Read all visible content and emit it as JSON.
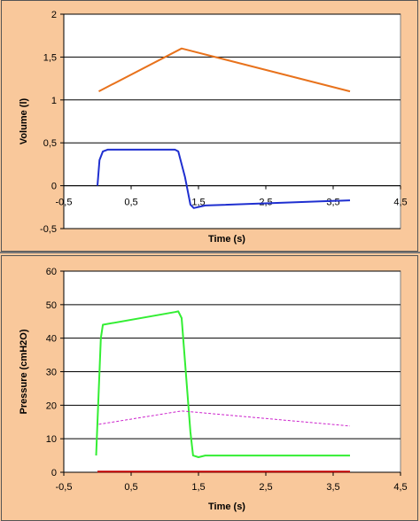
{
  "chart_data": [
    {
      "type": "line",
      "xlabel": "Time (s)",
      "ylabel": "Volume (l)",
      "xlim": [
        -0.5,
        4.5
      ],
      "ylim": [
        -0.5,
        2
      ],
      "xticks": [
        -0.5,
        0.5,
        1.5,
        2.5,
        3.5,
        4.5
      ],
      "xtick_labels": [
        "-0,5",
        "0,5",
        "1,5",
        "2,5",
        "3,5",
        "4,5"
      ],
      "yticks": [
        -0.5,
        0,
        0.5,
        1,
        1.5,
        2
      ],
      "ytick_labels": [
        "-0,5",
        "0",
        "0,5",
        "1",
        "1,5",
        "2"
      ],
      "grid": true,
      "series": [
        {
          "color": "#e8721c",
          "style": "solid",
          "points": [
            [
              0.02,
              1.1
            ],
            [
              1.25,
              1.6
            ],
            [
              3.75,
              1.1
            ]
          ]
        },
        {
          "color": "#1f2fd0",
          "style": "solid",
          "points": [
            [
              0.0,
              0.0
            ],
            [
              0.03,
              0.3
            ],
            [
              0.08,
              0.4
            ],
            [
              0.15,
              0.42
            ],
            [
              1.15,
              0.42
            ],
            [
              1.2,
              0.4
            ],
            [
              1.3,
              0.1
            ],
            [
              1.38,
              -0.22
            ],
            [
              1.43,
              -0.26
            ],
            [
              1.6,
              -0.23
            ],
            [
              3.75,
              -0.17
            ]
          ]
        }
      ]
    },
    {
      "type": "line",
      "xlabel": "Time (s)",
      "ylabel": "Pressure (cmH2O)",
      "xlim": [
        -0.5,
        4.5
      ],
      "ylim": [
        0,
        60
      ],
      "xticks": [
        -0.5,
        0.5,
        1.5,
        2.5,
        3.5,
        4.5
      ],
      "xtick_labels": [
        "-0,5",
        "0,5",
        "1,5",
        "2,5",
        "3,5",
        "4,5"
      ],
      "yticks": [
        0,
        10,
        20,
        30,
        40,
        50,
        60
      ],
      "ytick_labels": [
        "0",
        "10",
        "20",
        "30",
        "40",
        "50",
        "60"
      ],
      "grid": true,
      "series": [
        {
          "color": "#33ee33",
          "style": "solid",
          "points": [
            [
              -0.02,
              5
            ],
            [
              0.05,
              40
            ],
            [
              0.08,
              44
            ],
            [
              1.15,
              47.8
            ],
            [
              1.2,
              48
            ],
            [
              1.25,
              46
            ],
            [
              1.38,
              12
            ],
            [
              1.42,
              5
            ],
            [
              1.5,
              4.5
            ],
            [
              1.6,
              5
            ],
            [
              3.75,
              5
            ]
          ]
        },
        {
          "color": "#cc22cc",
          "style": "dashed",
          "points": [
            [
              0.02,
              14.3
            ],
            [
              1.25,
              18.3
            ],
            [
              3.75,
              13.8
            ]
          ]
        },
        {
          "color": "#c00000",
          "style": "solid",
          "points": [
            [
              0.0,
              0.2
            ],
            [
              3.75,
              0.2
            ]
          ]
        }
      ]
    }
  ]
}
